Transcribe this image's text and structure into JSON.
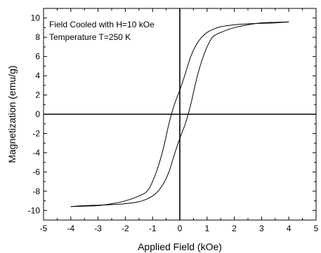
{
  "chart_data": {
    "type": "line",
    "title": "",
    "xlabel": "Applied Field (kOe)",
    "ylabel": "Magnetization (emu/g)",
    "xlim": [
      -5,
      5
    ],
    "ylim": [
      -11,
      11
    ],
    "xticks": [
      -5,
      -4,
      -3,
      -2,
      -1,
      0,
      1,
      2,
      3,
      4,
      5
    ],
    "yticks": [
      -10,
      -8,
      -6,
      -4,
      -2,
      0,
      2,
      4,
      6,
      8,
      10
    ],
    "grid": false,
    "legend": "none",
    "annotations": [
      "Field Cooled with H=10 kOe",
      "Temperature T=250 K"
    ],
    "zero_lines": true,
    "line_color": "#000000",
    "series": [
      {
        "x": [
          -4.0,
          -3.5,
          -3.0,
          -2.5,
          -2.0,
          -1.5,
          -1.2,
          -1.0,
          -0.8,
          -0.6,
          -0.4,
          -0.2,
          0.0,
          0.2,
          0.4,
          0.6,
          0.8,
          1.0,
          1.2,
          1.5,
          2.0,
          2.5,
          3.0,
          3.5,
          4.0
        ],
        "y": [
          -9.6,
          -9.55,
          -9.5,
          -9.3,
          -9.0,
          -8.5,
          -8.0,
          -7.0,
          -5.5,
          -3.5,
          -1.0,
          1.0,
          2.5,
          4.2,
          6.0,
          7.2,
          8.0,
          8.5,
          8.8,
          9.1,
          9.3,
          9.4,
          9.45,
          9.5,
          9.6
        ]
      },
      {
        "x": [
          4.0,
          3.5,
          3.0,
          2.5,
          2.0,
          1.5,
          1.2,
          1.0,
          0.8,
          0.6,
          0.4,
          0.2,
          0.0,
          -0.2,
          -0.4,
          -0.6,
          -0.8,
          -1.0,
          -1.2,
          -1.5,
          -2.0,
          -2.5,
          -3.0,
          -3.5,
          -4.0
        ],
        "y": [
          9.6,
          9.55,
          9.5,
          9.3,
          9.0,
          8.5,
          8.0,
          7.0,
          5.5,
          3.5,
          1.0,
          -1.0,
          -2.5,
          -4.2,
          -6.0,
          -7.2,
          -8.0,
          -8.5,
          -8.8,
          -9.1,
          -9.3,
          -9.4,
          -9.45,
          -9.5,
          -9.6
        ]
      }
    ]
  }
}
